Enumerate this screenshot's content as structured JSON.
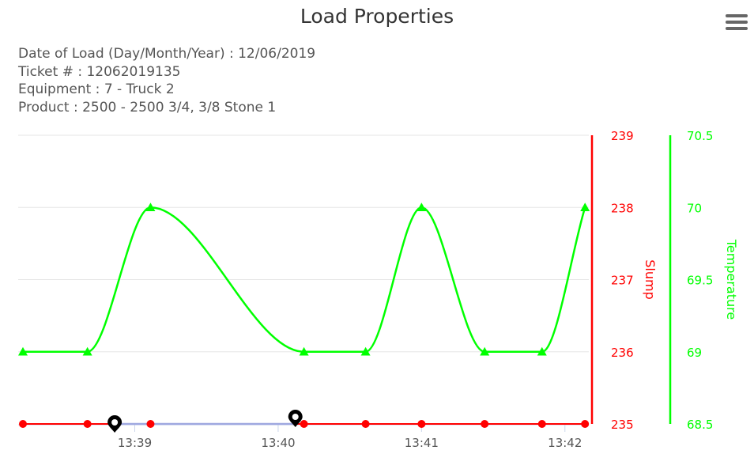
{
  "header": {
    "title": "Load Properties"
  },
  "info": {
    "date": "Date of Load (Day/Month/Year) : 12/06/2019",
    "ticket": "Ticket # : 12062019135",
    "equipment": "Equipment : 7 - Truck 2",
    "product": "Product : 2500 - 2500 3/4, 3/8 Stone 1"
  },
  "colors": {
    "slump": "#ff0000",
    "temperature": "#00ff00",
    "grid": "#e6e6e6",
    "band": "#9fa8e0",
    "marker": "#000000"
  },
  "icons": {
    "menu": "hamburger-menu-icon",
    "pin": "map-pin-icon"
  },
  "chart_data": {
    "type": "line",
    "x_labels": [
      "13:39",
      "13:40",
      "13:41",
      "13:42"
    ],
    "x_label_minutes": [
      0,
      1,
      2,
      3
    ],
    "x_range_minutes": [
      -0.78,
      3.15
    ],
    "series": [
      {
        "name": "Slump",
        "axis": "left-outer",
        "marker": "circle",
        "x_minutes": [
          -0.78,
          -0.33,
          0.11,
          1.18,
          1.61,
          2.0,
          2.44,
          2.84,
          3.14
        ],
        "values": [
          235,
          235,
          235,
          235,
          235,
          235,
          235,
          235,
          235
        ]
      },
      {
        "name": "Temperature",
        "axis": "right",
        "marker": "triangle",
        "x_minutes": [
          -0.78,
          -0.33,
          0.11,
          1.18,
          1.61,
          2.0,
          2.44,
          2.84,
          3.14
        ],
        "values": [
          69,
          69,
          70,
          69,
          69,
          70,
          69,
          69,
          70
        ]
      }
    ],
    "slump_axis": {
      "title": "Slump",
      "min": 235,
      "max": 239,
      "ticks": [
        "239",
        "238",
        "237",
        "236",
        "235"
      ]
    },
    "temperature_axis": {
      "title": "Temperature",
      "min": 68.5,
      "max": 70.5,
      "ticks": [
        "70.5",
        "70",
        "69.5",
        "69",
        "68.5"
      ]
    },
    "band": {
      "from_minutes": -0.14,
      "to_minutes": 1.12
    },
    "pins_minutes": [
      -0.14,
      1.12
    ],
    "grid": true
  }
}
